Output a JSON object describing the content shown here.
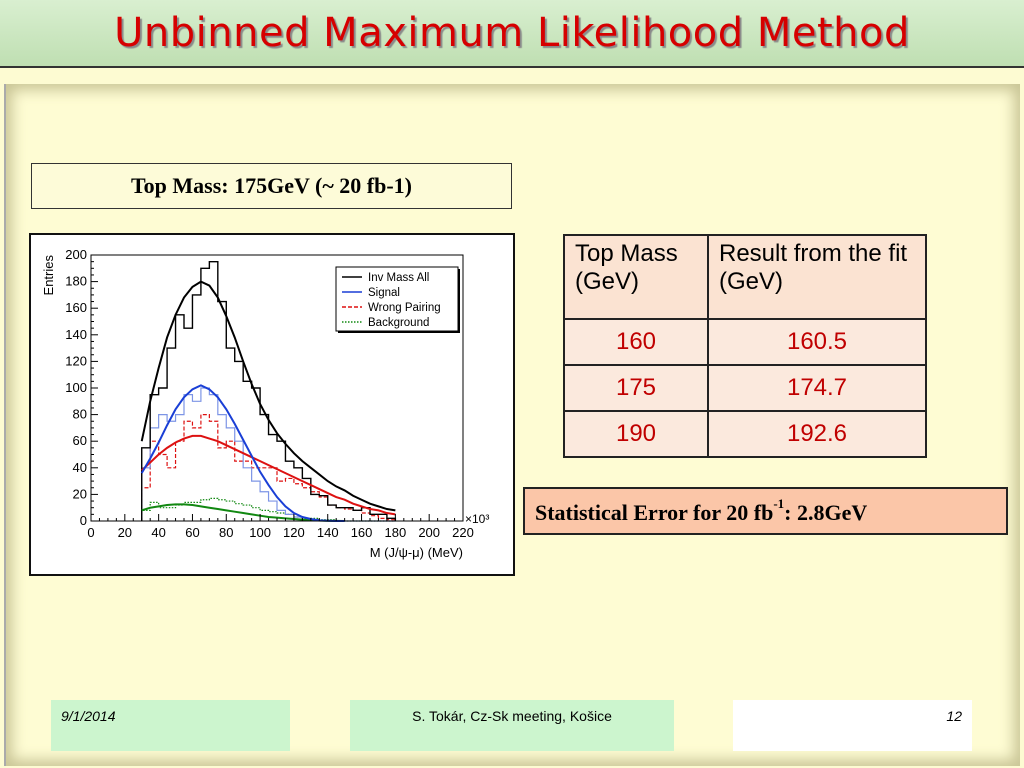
{
  "title": "Unbinned Maximum Likelihood Method",
  "subtitle": "Top Mass: 175GeV  (~ 20 fb-1)",
  "table": {
    "headers": [
      "Top Mass (GeV)",
      "Result from the fit (GeV)"
    ],
    "rows": [
      [
        "160",
        "160.5"
      ],
      [
        "175",
        "174.7"
      ],
      [
        "190",
        "192.6"
      ]
    ]
  },
  "stat_error": {
    "prefix": "Statistical Error for 20 fb",
    "sup": "-1",
    "suffix": ": 2.8GeV"
  },
  "footer": {
    "date": "9/1/2014",
    "author": "S. Tokár, Cz-Sk meeting, Košice",
    "page": "12"
  },
  "chart_data": {
    "type": "line",
    "xlabel": "M (J/ψ-μ) (MeV)",
    "ylabel": "Entries",
    "x_multiplier_label": "×10³",
    "xlim": [
      0,
      220
    ],
    "ylim": [
      0,
      200
    ],
    "x_ticks": [
      "0",
      "20",
      "40",
      "60",
      "80",
      "100",
      "120",
      "140",
      "160",
      "180",
      "200",
      "220"
    ],
    "y_ticks": [
      "0",
      "20",
      "40",
      "60",
      "80",
      "100",
      "120",
      "140",
      "160",
      "180",
      "200"
    ],
    "legend": [
      "Inv Mass All",
      "Signal",
      "Wrong Pairing",
      "Background"
    ],
    "legend_position": "top-right",
    "colors": {
      "all": "#000000",
      "signal": "#1a3fd6",
      "wrong": "#dd1111",
      "bg": "#118811"
    },
    "bin_edges": [
      30,
      35,
      40,
      45,
      50,
      55,
      60,
      65,
      70,
      75,
      80,
      85,
      90,
      95,
      100,
      105,
      110,
      115,
      120,
      125,
      130,
      135,
      140,
      145,
      150,
      155,
      160,
      165,
      170,
      175,
      180
    ],
    "hist_all": [
      55,
      95,
      100,
      130,
      155,
      145,
      170,
      190,
      195,
      165,
      130,
      120,
      105,
      100,
      80,
      65,
      60,
      45,
      40,
      32,
      20,
      19,
      12,
      10,
      10,
      8,
      10,
      5,
      5,
      2
    ],
    "hist_signal": [
      40,
      70,
      80,
      75,
      80,
      95,
      90,
      100,
      95,
      80,
      70,
      60,
      40,
      30,
      22,
      15,
      8,
      5,
      3,
      1,
      1,
      0,
      0,
      0,
      0,
      0,
      0,
      0,
      0,
      0
    ],
    "hist_wrong": [
      25,
      60,
      50,
      40,
      60,
      75,
      70,
      80,
      75,
      55,
      60,
      45,
      45,
      40,
      40,
      40,
      30,
      32,
      28,
      25,
      22,
      18,
      12,
      10,
      9,
      8,
      6,
      4,
      2,
      1
    ],
    "hist_bg": [
      8,
      14,
      10,
      10,
      12,
      14,
      14,
      16,
      17,
      16,
      15,
      13,
      12,
      10,
      8,
      7,
      6,
      5,
      3,
      2,
      2,
      1,
      1,
      0,
      0,
      0,
      0,
      0,
      0,
      0
    ],
    "fit_all": {
      "x": [
        30,
        35,
        40,
        45,
        50,
        55,
        60,
        65,
        70,
        75,
        80,
        85,
        90,
        95,
        100,
        105,
        110,
        115,
        120,
        125,
        130,
        135,
        140,
        145,
        150,
        155,
        160,
        165,
        170,
        175,
        180
      ],
      "y": [
        60,
        90,
        115,
        138,
        155,
        168,
        176,
        180,
        177,
        168,
        154,
        138,
        120,
        103,
        88,
        76,
        66,
        58,
        51,
        45,
        40,
        35,
        30,
        26,
        23,
        19,
        16,
        13,
        11,
        9,
        8
      ]
    },
    "fit_signal": {
      "x": [
        30,
        35,
        40,
        45,
        50,
        55,
        60,
        65,
        70,
        75,
        80,
        85,
        90,
        95,
        100,
        105,
        110,
        115,
        120,
        125,
        130,
        135,
        140,
        145,
        150
      ],
      "y": [
        36,
        47,
        59,
        72,
        84,
        93,
        99,
        102,
        99,
        93,
        84,
        73,
        61,
        49,
        37,
        27,
        18,
        11,
        6,
        3,
        1.5,
        0.5,
        0.2,
        0,
        0
      ]
    },
    "fit_wrong": {
      "x": [
        30,
        35,
        40,
        45,
        50,
        55,
        60,
        65,
        70,
        75,
        80,
        85,
        90,
        95,
        100,
        105,
        110,
        115,
        120,
        125,
        130,
        135,
        140,
        145,
        150,
        155,
        160,
        165,
        170,
        175,
        180
      ],
      "y": [
        38,
        44,
        50,
        55,
        59,
        62,
        64,
        64,
        62,
        60,
        57,
        54,
        51,
        48,
        45,
        42,
        39,
        36,
        33,
        30,
        27,
        24,
        21,
        18,
        16,
        13,
        11,
        9,
        8,
        6,
        5
      ]
    },
    "fit_bg": {
      "x": [
        30,
        35,
        40,
        45,
        50,
        55,
        60,
        65,
        70,
        75,
        80,
        85,
        90,
        95,
        100,
        105,
        110,
        115,
        120,
        125,
        130,
        135,
        140,
        145,
        150
      ],
      "y": [
        8,
        10,
        11,
        12,
        12.5,
        12.5,
        12,
        11,
        10,
        9,
        8,
        7,
        6,
        5,
        4,
        3,
        2.5,
        2,
        1.5,
        1,
        0.6,
        0.4,
        0.2,
        0.1,
        0
      ]
    }
  }
}
